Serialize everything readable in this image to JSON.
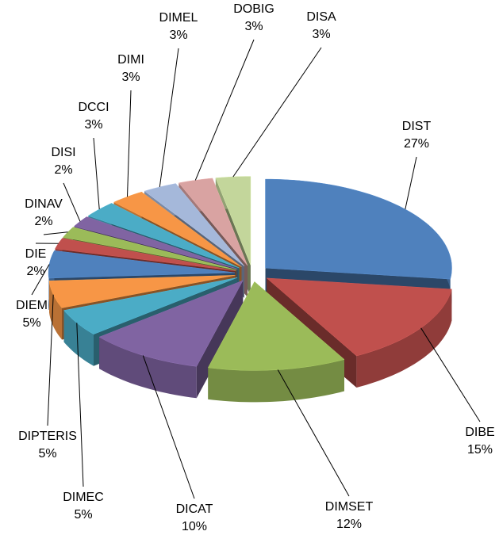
{
  "chart_data": {
    "type": "pie",
    "categories": [
      "DIST",
      "DIBE",
      "DIMSET",
      "DICAT",
      "DIMEC",
      "DIPTERIS",
      "DIEM",
      "DIE",
      "DINAV",
      "DISI",
      "DCCI",
      "DIMI",
      "DIMEL",
      "DOBIG",
      "DISA"
    ],
    "values": [
      27,
      15,
      12,
      10,
      5,
      5,
      5,
      2,
      2,
      2,
      3,
      3,
      3,
      3,
      3
    ],
    "value_labels": [
      "27%",
      "15%",
      "12%",
      "10%",
      "5%",
      "5%",
      "5%",
      "2%",
      "2%",
      "2%",
      "3%",
      "3%",
      "3%",
      "3%",
      "3%"
    ],
    "colors": [
      "#4f81bd",
      "#c0504d",
      "#9bbb59",
      "#8064a2",
      "#4bacc6",
      "#f79646",
      "#4f81bd",
      "#c0504d",
      "#9bbb59",
      "#8064a2",
      "#4bacc6",
      "#f79646",
      "#a5b8da",
      "#d9a3a2",
      "#c3d69b"
    ]
  }
}
